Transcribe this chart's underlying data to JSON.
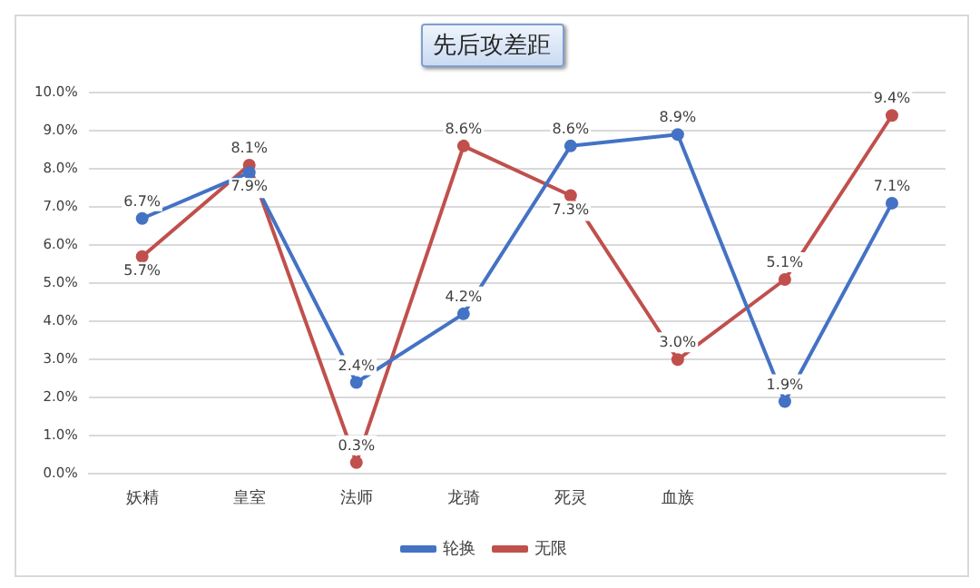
{
  "chart_data": {
    "type": "line",
    "title": "先后攻差距",
    "categories": [
      "妖精",
      "皇室",
      "法师",
      "龙骑",
      "死灵",
      "血族",
      null,
      null
    ],
    "series": [
      {
        "name": "轮换",
        "color": "#4472c4",
        "values": [
          6.7,
          7.9,
          2.4,
          4.2,
          8.6,
          8.9,
          1.9,
          7.1
        ],
        "value_labels": [
          "6.7%",
          "7.9%",
          "2.4%",
          "4.2%",
          "8.6%",
          "8.9%",
          "1.9%",
          "7.1%"
        ]
      },
      {
        "name": "无限",
        "color": "#c0504d",
        "values": [
          5.7,
          8.1,
          0.3,
          8.6,
          7.3,
          3.0,
          5.1,
          9.4
        ],
        "value_labels": [
          "5.7%",
          "8.1%",
          "0.3%",
          "8.6%",
          "7.3%",
          "3.0%",
          "5.1%",
          "9.4%"
        ]
      }
    ],
    "ylim": [
      0,
      10
    ],
    "yticks": [
      {
        "value": 0,
        "label": "0.0%"
      },
      {
        "value": 1,
        "label": "1.0%"
      },
      {
        "value": 2,
        "label": "2.0%"
      },
      {
        "value": 3,
        "label": "3.0%"
      },
      {
        "value": 4,
        "label": "4.0%"
      },
      {
        "value": 5,
        "label": "5.0%"
      },
      {
        "value": 6,
        "label": "6.0%"
      },
      {
        "value": 7,
        "label": "7.0%"
      },
      {
        "value": 8,
        "label": "8.0%"
      },
      {
        "value": 9,
        "label": "9.0%"
      },
      {
        "value": 10,
        "label": "10.0%"
      }
    ],
    "grid": "y",
    "legend": "bottom",
    "marker": "circle",
    "line_style": "solid"
  }
}
